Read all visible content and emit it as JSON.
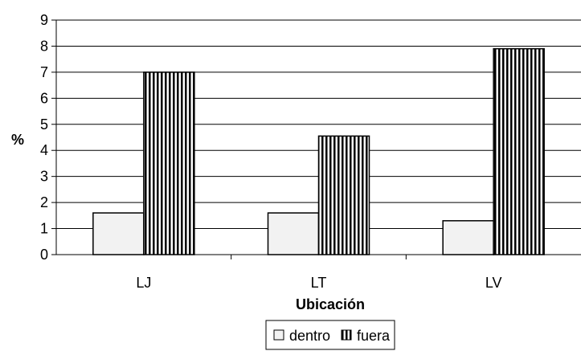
{
  "chart_data": {
    "type": "bar",
    "categories": [
      "LJ",
      "LT",
      "LV"
    ],
    "series": [
      {
        "name": "dentro",
        "values": [
          1.6,
          1.6,
          1.3
        ],
        "pattern": "solid-light",
        "color": "#f2f2f2"
      },
      {
        "name": "fuera",
        "values": [
          7.0,
          4.55,
          7.9
        ],
        "pattern": "vertical-stripes",
        "color": "#000000"
      }
    ],
    "xlabel": "Ubicación",
    "ylabel": "%",
    "ylim": [
      0,
      9
    ],
    "yticks": [
      "0",
      "1",
      "2",
      "3",
      "4",
      "5",
      "6",
      "7",
      "8",
      "9"
    ],
    "grid": true,
    "legend_position": "bottom"
  }
}
